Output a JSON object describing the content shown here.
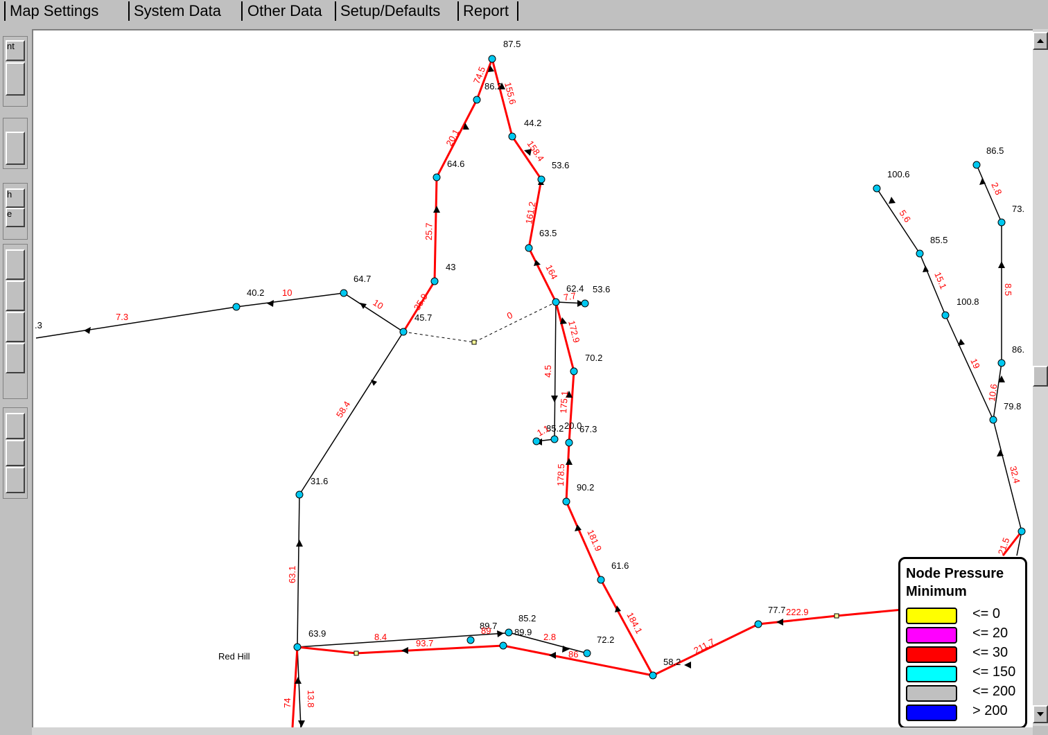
{
  "tabs": [
    "Map Settings",
    "System Data",
    "Other Data",
    "Setup/Defaults",
    "Report"
  ],
  "left_toolbar_fragments": [
    "nt",
    "h",
    "e",
    ".3"
  ],
  "legend": {
    "title_line1": "Node Pressure",
    "title_line2": "Minimum",
    "items": [
      {
        "label": "<= 0",
        "color": "#ffff00"
      },
      {
        "label": "<= 20",
        "color": "#ff00ff"
      },
      {
        "label": "<= 30",
        "color": "#ff0000"
      },
      {
        "label": "<= 150",
        "color": "#00ffff"
      },
      {
        "label": "<= 200",
        "color": "#c0c0c0"
      },
      {
        "label": "> 200",
        "color": "#0000ff"
      }
    ]
  },
  "colors": {
    "pipe_low": "#ff0000",
    "pipe_normal": "#000000",
    "node": "#00c8f0",
    "label_flow": "#ff0000"
  },
  "map": {
    "site_label": "Red Hill",
    "node_labels": [
      "87.5",
      "86.2",
      "44.2",
      "53.6",
      "64.6",
      "63.5",
      "43",
      "62.4",
      "53.6",
      "64.7",
      "40.2",
      "45.7",
      "70.2",
      "85.2",
      "20.0",
      "67.3",
      "90.2",
      "31.6",
      "61.6",
      "63.9",
      "89.7",
      "85.2",
      "89.9",
      "72.2",
      "58.2",
      "77.7",
      "100.6",
      "86.5",
      "73.",
      "85.5",
      "100.8",
      "86.",
      "79.8"
    ],
    "flow_labels": [
      "74.5",
      "155.6",
      "20.1",
      "158.4",
      "25.7",
      "161.2",
      "35.9",
      "164",
      "10",
      "7.3",
      "10",
      "0",
      "7.7",
      "172.9",
      "4.5",
      "175.1",
      "1.1",
      "178.5",
      "58.4",
      "181.9",
      "63.1",
      "184.1",
      "8.4",
      "93.7",
      "89",
      "2.8",
      "86",
      "211.7",
      "222.9",
      "74",
      "13.8",
      "5.6",
      "2.8",
      "15.1",
      "8.5",
      "19",
      "10.6",
      "32.4",
      "21.5"
    ]
  }
}
